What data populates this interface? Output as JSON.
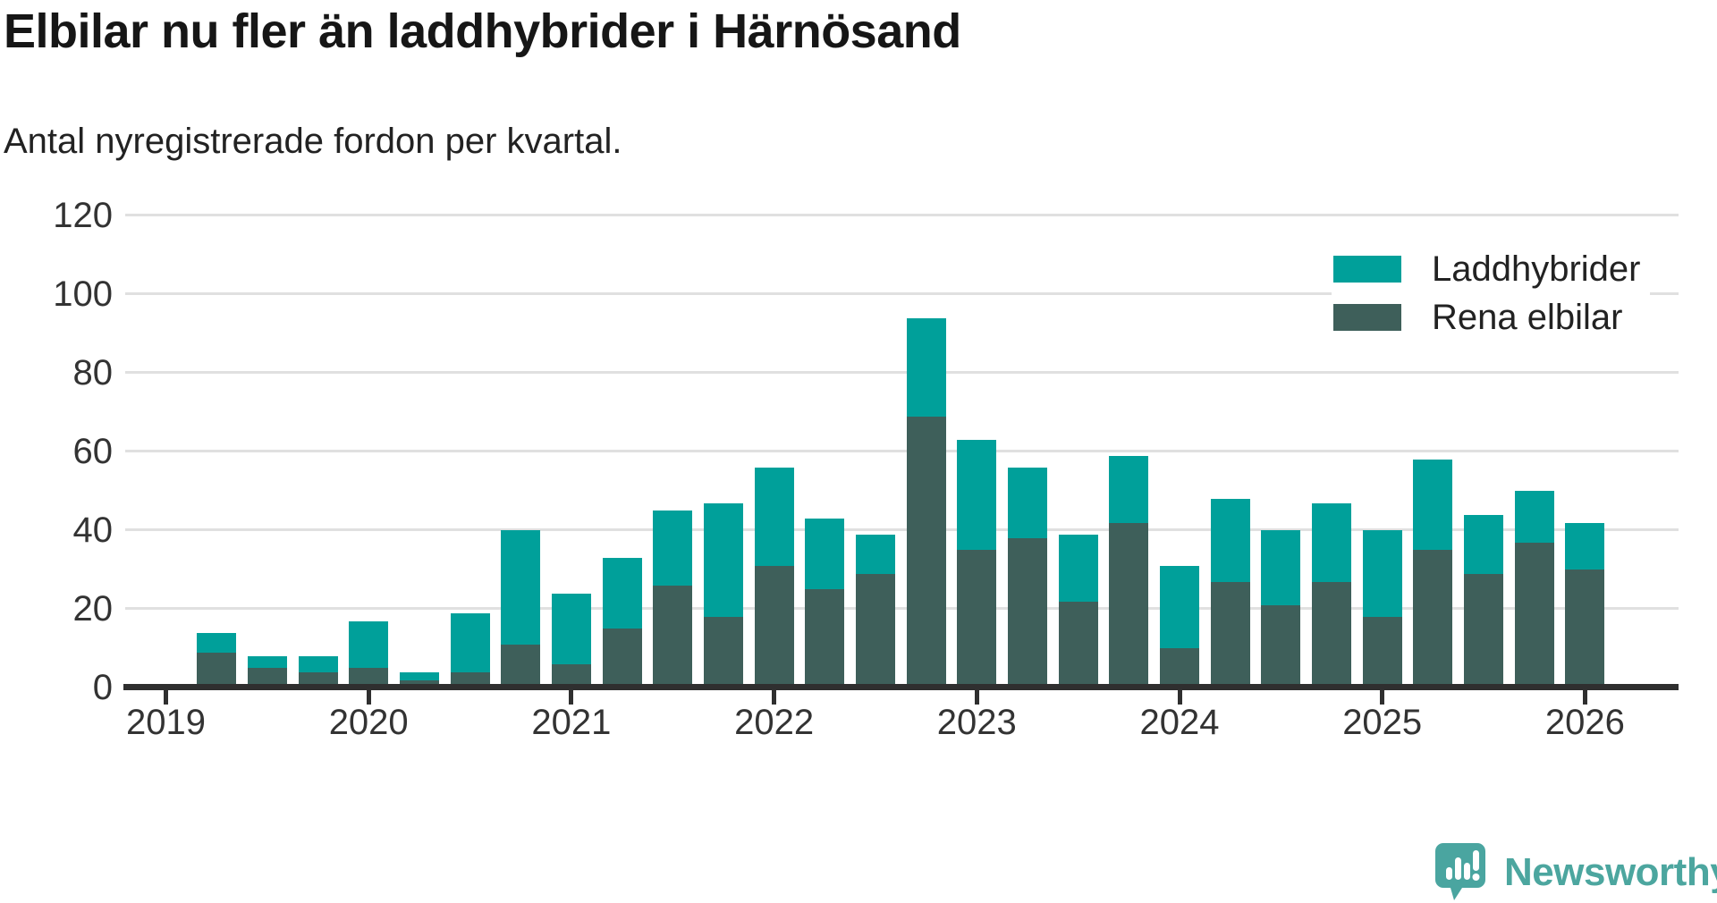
{
  "title": "Elbilar nu fler än laddhybrider i Härnösand",
  "subtitle": "Antal nyregistrerade fordon per kvartal.",
  "legend": {
    "items": [
      {
        "label": "Laddhybrider",
        "color": "#00a09a"
      },
      {
        "label": "Rena elbilar",
        "color": "#3e5f5a"
      }
    ]
  },
  "logo": {
    "text": "Newsworthy",
    "color": "#4ca69f"
  },
  "colors": {
    "laddhybrider": "#00a09a",
    "rena_elbilar": "#3e5f5a",
    "gridline": "#e0e0e0",
    "axis": "#2f2f2f",
    "text": "#333333"
  },
  "chart_data": {
    "type": "bar",
    "stacked": true,
    "title": "Elbilar nu fler än laddhybrider i Härnösand",
    "subtitle": "Antal nyregistrerade fordon per kvartal.",
    "x": [
      "2019 Q2",
      "2019 Q3",
      "2019 Q4",
      "2020 Q1",
      "2020 Q2",
      "2020 Q3",
      "2020 Q4",
      "2021 Q1",
      "2021 Q2",
      "2021 Q3",
      "2021 Q4",
      "2022 Q1",
      "2022 Q2",
      "2022 Q3",
      "2022 Q4",
      "2023 Q1",
      "2023 Q2",
      "2023 Q3",
      "2023 Q4",
      "2024 Q1",
      "2024 Q2",
      "2024 Q3",
      "2024 Q4",
      "2025 Q1",
      "2025 Q2",
      "2025 Q3",
      "2025 Q4",
      "2026 Q1"
    ],
    "series": [
      {
        "name": "Rena elbilar",
        "color": "#3e5f5a",
        "values": [
          8,
          4,
          3,
          4,
          1,
          3,
          10,
          5,
          14,
          25,
          17,
          30,
          24,
          28,
          68,
          34,
          37,
          21,
          41,
          9,
          26,
          20,
          26,
          17,
          34,
          28,
          36,
          29
        ]
      },
      {
        "name": "Laddhybrider",
        "color": "#00a09a",
        "values": [
          5,
          3,
          4,
          12,
          2,
          15,
          29,
          18,
          18,
          19,
          29,
          25,
          18,
          10,
          25,
          28,
          18,
          17,
          17,
          21,
          21,
          19,
          20,
          22,
          23,
          15,
          13,
          12
        ]
      }
    ],
    "totals": [
      13,
      7,
      7,
      16,
      3,
      18,
      39,
      23,
      32,
      44,
      46,
      55,
      42,
      38,
      93,
      62,
      55,
      38,
      58,
      30,
      47,
      39,
      46,
      39,
      57,
      43,
      49,
      41
    ],
    "ylim": [
      0,
      120
    ],
    "yticks": [
      0,
      20,
      40,
      60,
      80,
      100,
      120
    ],
    "xticks": [
      "2019",
      "2020",
      "2021",
      "2022",
      "2023",
      "2024",
      "2025",
      "2026"
    ],
    "grid": true,
    "legend_position": "top-right"
  }
}
